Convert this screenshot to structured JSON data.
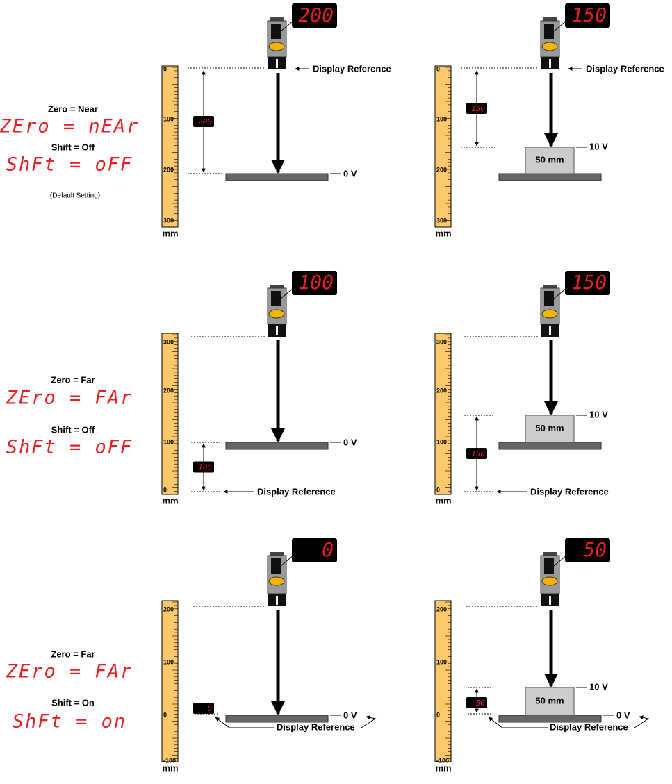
{
  "rows": [
    {
      "zero_label": "Zero = Near",
      "zero_display": "ZEro = nEAr",
      "shift_label": "Shift = Off",
      "shift_display": "ShFt = oFF",
      "note": "(Default Setting)",
      "panels": [
        {
          "ruler_ticks": [
            "0",
            "100",
            "200",
            "300"
          ],
          "unit": "mm",
          "display": "200",
          "distance_display": "200",
          "reference_label": "Display Reference",
          "plate_voltage": "0 V"
        },
        {
          "ruler_ticks": [
            "0",
            "100",
            "200",
            "300"
          ],
          "unit": "mm",
          "display": "150",
          "distance_display": "150",
          "reference_label": "Display Reference",
          "target_label": "50 mm",
          "target_voltage": "10 V"
        }
      ]
    },
    {
      "zero_label": "Zero = Far",
      "zero_display": "ZEro = FAr",
      "shift_label": "Shift = Off",
      "shift_display": "ShFt = oFF",
      "panels": [
        {
          "ruler_ticks": [
            "300",
            "200",
            "100",
            "0"
          ],
          "unit": "mm",
          "display": "100",
          "distance_display": "100",
          "reference_label": "Display Reference",
          "plate_voltage": "0 V"
        },
        {
          "ruler_ticks": [
            "300",
            "200",
            "100",
            "0"
          ],
          "unit": "mm",
          "display": "150",
          "distance_display": "150",
          "reference_label": "Display Reference",
          "target_label": "50 mm",
          "target_voltage": "10 V"
        }
      ]
    },
    {
      "zero_label": "Zero = Far",
      "zero_display": "ZEro = FAr",
      "shift_label": "Shift = On",
      "shift_display": "ShFt = on",
      "panels": [
        {
          "ruler_ticks": [
            "200",
            "100",
            "0",
            "-100"
          ],
          "unit": "mm",
          "display": "0",
          "distance_display": "0",
          "reference_label": "Display Reference",
          "plate_voltage": "0 V"
        },
        {
          "ruler_ticks": [
            "200",
            "100",
            "0",
            "-100"
          ],
          "unit": "mm",
          "display": "50",
          "distance_display": "50",
          "reference_label": "Display Reference",
          "target_label": "50 mm",
          "target_voltage": "10 V",
          "plate_voltage": "0 V"
        }
      ]
    }
  ]
}
